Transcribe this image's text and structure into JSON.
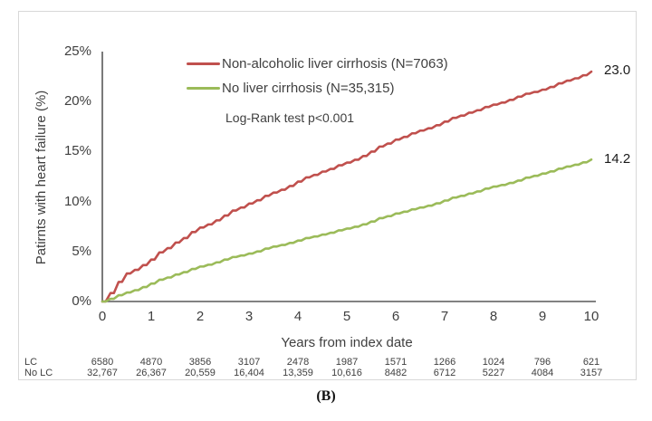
{
  "panel_label": "(B)",
  "colors": {
    "red": "#c0504d",
    "green": "#9bbb59",
    "axis": "#595959",
    "text": "#3f3f3f",
    "border": "#d8d8d8"
  },
  "chart_data": {
    "type": "line",
    "title": "",
    "xlabel": "Years from index date",
    "ylabel": "Patirnts with heart failure (%)",
    "xlim": [
      0,
      10
    ],
    "ylim": [
      0,
      25
    ],
    "grid": false,
    "legend_position": "top-center-inside",
    "x_ticks": [
      "0",
      "1",
      "2",
      "3",
      "4",
      "5",
      "6",
      "7",
      "8",
      "9",
      "10"
    ],
    "y_ticks": [
      "0%",
      "5%",
      "10%",
      "15%",
      "20%",
      "25%"
    ],
    "x_step_years": 0.5,
    "annotation": "Log-Rank test p<0.001",
    "series": [
      {
        "name": "Non-alcoholic liver cirrhosis (N=7063)",
        "color_key": "red",
        "end_label": "23.0",
        "values": [
          0,
          2.8,
          4.2,
          5.9,
          7.4,
          8.6,
          9.8,
          10.9,
          12.0,
          13.0,
          13.9,
          15.0,
          16.2,
          17.1,
          18.0,
          18.9,
          19.7,
          20.5,
          21.2,
          22.1,
          23.0
        ]
      },
      {
        "name": "No liver cirrhosis (N=35,315)",
        "color_key": "green",
        "end_label": "14.2",
        "values": [
          0,
          0.9,
          1.8,
          2.7,
          3.5,
          4.2,
          4.8,
          5.5,
          6.1,
          6.7,
          7.3,
          8.0,
          8.8,
          9.4,
          10.1,
          10.8,
          11.5,
          12.1,
          12.8,
          13.5,
          14.2
        ]
      }
    ]
  },
  "risk_table": {
    "rows": [
      {
        "label": "LC",
        "values": [
          "6580",
          "4870",
          "3856",
          "3107",
          "2478",
          "1987",
          "1571",
          "1266",
          "1024",
          "796",
          "621"
        ]
      },
      {
        "label": "No LC",
        "values": [
          "32,767",
          "26,367",
          "20,559",
          "16,404",
          "13,359",
          "10,616",
          "8482",
          "6712",
          "5227",
          "4084",
          "3157"
        ]
      }
    ]
  }
}
